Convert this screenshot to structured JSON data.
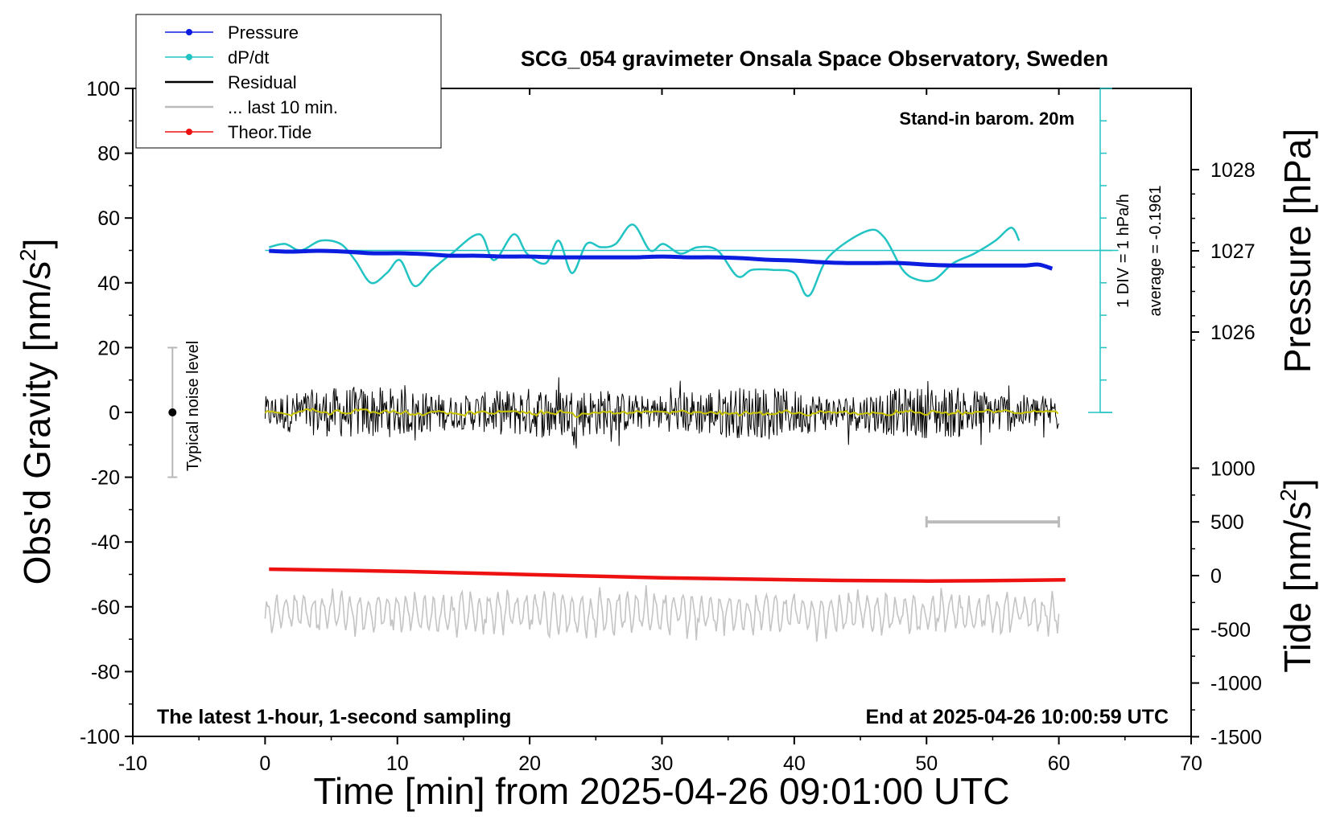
{
  "chart_data": {
    "type": "line",
    "title": "SCG_054 gravimeter Onsala Space Observatory, Sweden",
    "xlabel": "Time [min] from 2025-04-26 09:01:00 UTC",
    "ylabel_left_main": "Obs'd Gravity [nm/s",
    "ylabel_left_sup": "2",
    "ylabel_left_tail": "]",
    "ylabel_right_top": "Pressure [hPa]",
    "ylabel_right_bottom_main": "Tide [nm/s",
    "ylabel_right_bottom_sup": "2",
    "ylabel_right_bottom_tail": "]",
    "xlim": [
      -10,
      70
    ],
    "ylim": [
      -100,
      100
    ],
    "x_ticks": [
      -10,
      0,
      10,
      20,
      30,
      40,
      50,
      60,
      70
    ],
    "y_ticks": [
      100,
      80,
      60,
      40,
      20,
      0,
      -20,
      -40,
      -60,
      -80,
      -100
    ],
    "pressure_ticks": [
      1028,
      1027,
      1026
    ],
    "tide_ticks": [
      1000,
      500,
      0,
      -500,
      -1000,
      -1500
    ],
    "annotations": {
      "barom": "Stand-in barom. 20m",
      "noise": "Typical noise level",
      "div": "1 DIV = 1 hPa/h",
      "average": "average = -0.1961",
      "latest": "The latest 1-hour, 1-second sampling",
      "end": "End at 2025-04-26 10:00:59 UTC"
    },
    "legend": {
      "position": "top-left",
      "entries": [
        "Pressure",
        "dP/dt",
        "Residual",
        "... last 10 min.",
        "Theor.Tide"
      ]
    },
    "colors": {
      "pressure": "#0b1ee0",
      "dpdt": "#22c3c3",
      "residual": "#000000",
      "residual_smooth": "#c8c400",
      "last10": "#bbbbbb",
      "tide": "#ee1111",
      "lower_gray": "#c4c4c4",
      "noise_bar": "#b8b8b8"
    },
    "series": [
      {
        "name": "Pressure",
        "axis": "pressure",
        "x": [
          0.3,
          2,
          4,
          6,
          8,
          10,
          12,
          14,
          16,
          18,
          20,
          22,
          24,
          26,
          28,
          30,
          32,
          34,
          36,
          38,
          40,
          42,
          44,
          46,
          48,
          50,
          52,
          54,
          56,
          57.5,
          58.5,
          59.5
        ],
        "values": [
          1027.0,
          1026.99,
          1027.0,
          1026.99,
          1026.97,
          1026.97,
          1026.96,
          1026.94,
          1026.94,
          1026.93,
          1026.93,
          1026.92,
          1026.92,
          1026.92,
          1026.92,
          1026.93,
          1026.92,
          1026.92,
          1026.91,
          1026.89,
          1026.88,
          1026.86,
          1026.85,
          1026.85,
          1026.85,
          1026.83,
          1026.82,
          1026.82,
          1026.82,
          1026.82,
          1026.83,
          1026.78
        ]
      },
      {
        "name": "dP/dt",
        "axis": "gravity",
        "x": [
          0.3,
          1.5,
          2.7,
          4.2,
          5.7,
          6.8,
          8.0,
          9.2,
          10.2,
          11.3,
          12.6,
          14.1,
          16.2,
          17.3,
          18.8,
          19.8,
          21.2,
          22.2,
          23.2,
          24.3,
          25.4,
          26.5,
          27.8,
          29.1,
          30.1,
          31.4,
          32.7,
          34.2,
          35.7,
          36.8,
          38.4,
          40.0,
          41.1,
          42.6,
          45.5,
          46.8,
          48.2,
          49.3,
          50.6,
          52.0,
          53.6,
          55.2,
          56.4,
          57.0
        ],
        "values": [
          51,
          52,
          50,
          53,
          52,
          47,
          40,
          43,
          47,
          39,
          44,
          49,
          55,
          47,
          55,
          49,
          46,
          53,
          43,
          52,
          51,
          52,
          58,
          50,
          52,
          49,
          51,
          50,
          42,
          44,
          44,
          43,
          36,
          48,
          56,
          54,
          44,
          41,
          41,
          46,
          49,
          53,
          57,
          53
        ]
      },
      {
        "name": "Theor.Tide",
        "axis": "tide",
        "x": [
          0.3,
          10,
          20,
          30,
          40,
          50,
          60.5
        ],
        "values": [
          60,
          40,
          10,
          -20,
          -40,
          -50,
          -40
        ]
      }
    ]
  }
}
